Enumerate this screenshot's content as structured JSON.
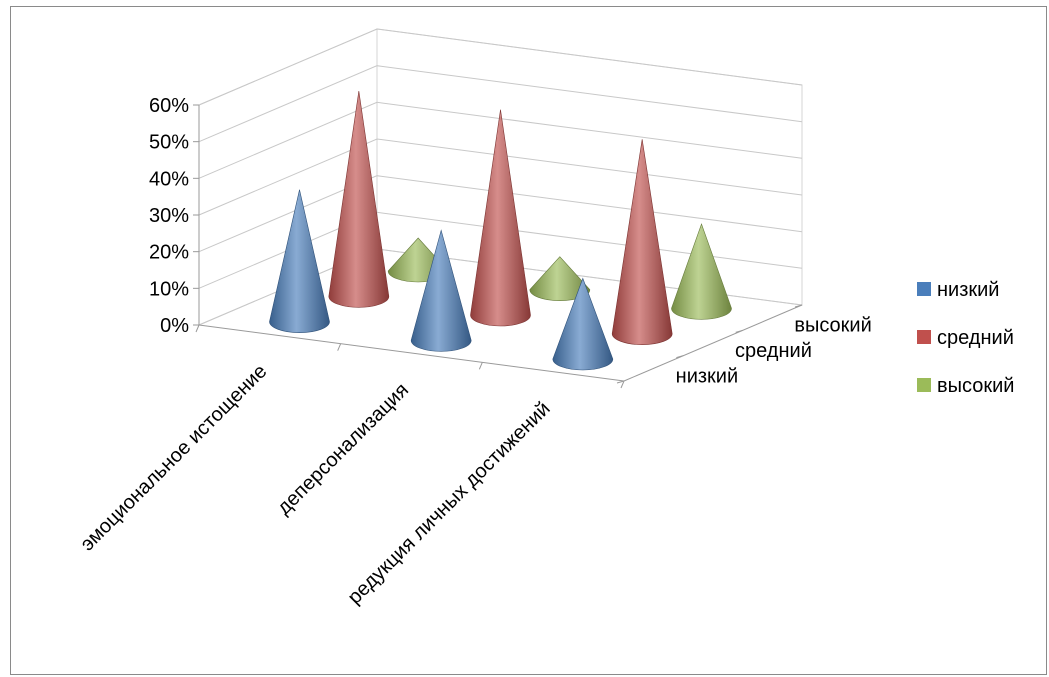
{
  "chart_data": {
    "type": "3d-cone",
    "categories": [
      "эмоциональное истощение",
      "деперсонализация",
      "редукция личных достижений"
    ],
    "depth_labels": [
      "низкий",
      "средний",
      "высокий"
    ],
    "series": [
      {
        "name": "низкий",
        "color": "#4a7ebb",
        "values": [
          0.36,
          0.3,
          0.22
        ]
      },
      {
        "name": "средний",
        "color": "#c0504d",
        "values": [
          0.56,
          0.56,
          0.53
        ]
      },
      {
        "name": "высокий",
        "color": "#9bbb59",
        "values": [
          0.09,
          0.09,
          0.23
        ]
      }
    ],
    "y_ticks": [
      "0%",
      "10%",
      "20%",
      "30%",
      "40%",
      "50%",
      "60%"
    ],
    "ylim": [
      0,
      0.6
    ],
    "legend_position": "right",
    "grid": true
  }
}
